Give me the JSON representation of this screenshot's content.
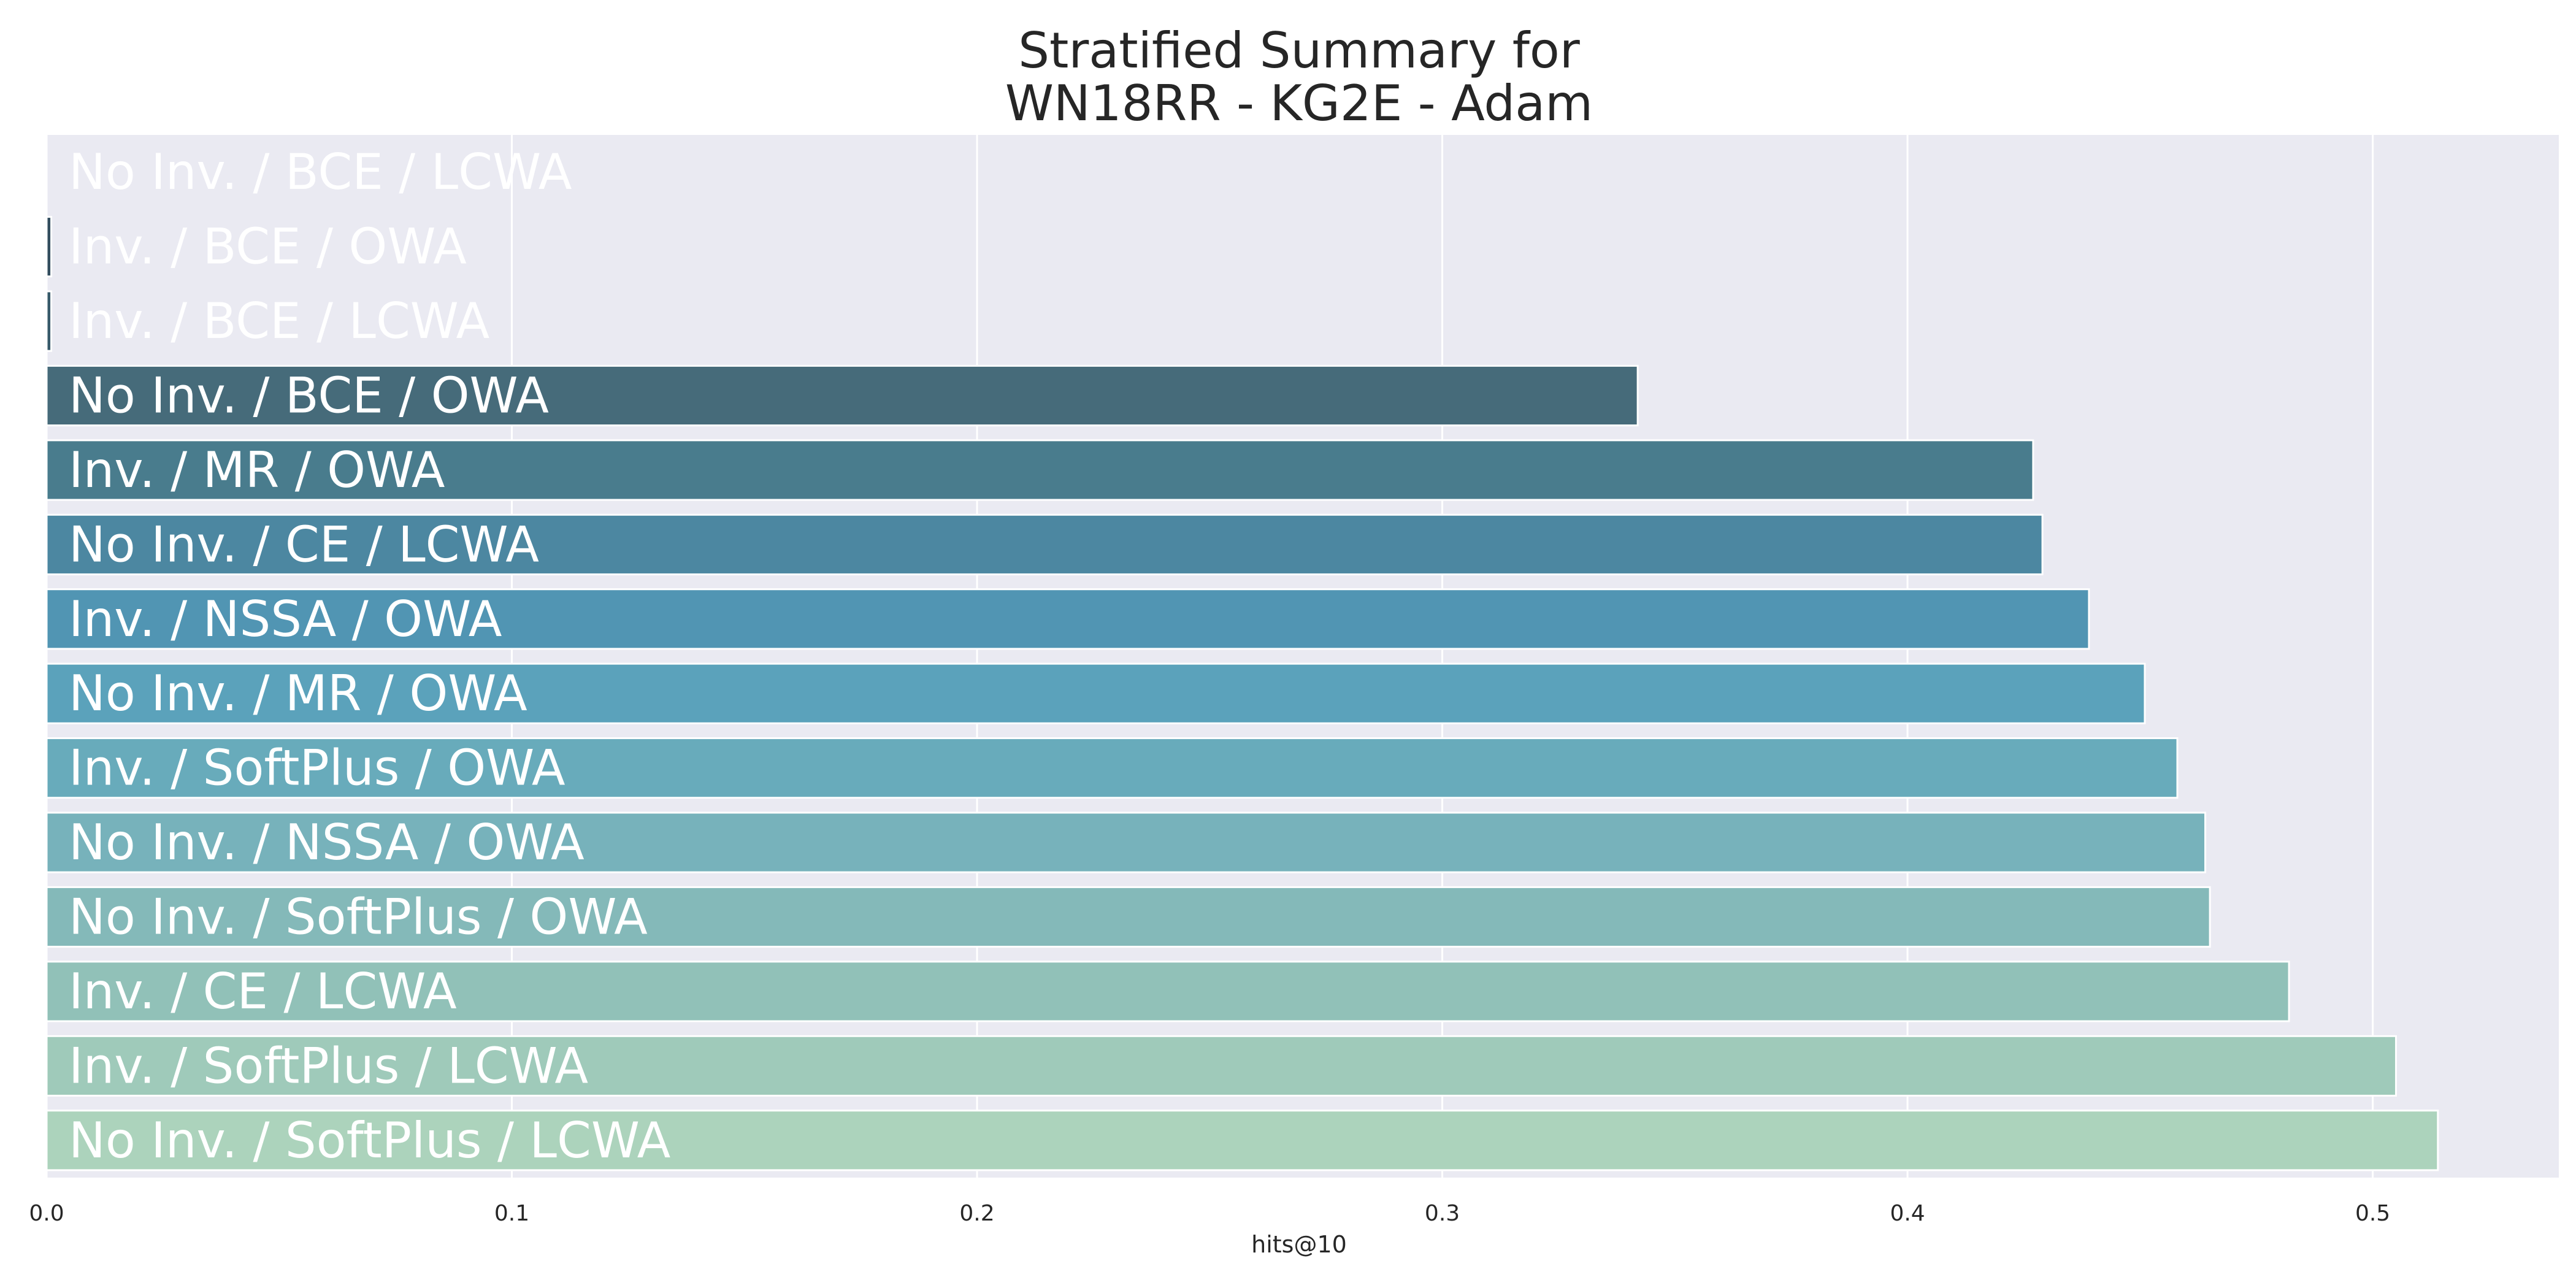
{
  "chart_data": {
    "type": "bar",
    "orientation": "horizontal",
    "title_lines": [
      "Stratified Summary for",
      "WN18RR - KG2E - Adam"
    ],
    "xlabel": "hits@10",
    "ylabel": "",
    "xlim": [
      0.0,
      0.54
    ],
    "xticks": [
      {
        "value": 0.0,
        "label": "0.0"
      },
      {
        "value": 0.1,
        "label": "0.1"
      },
      {
        "value": 0.2,
        "label": "0.2"
      },
      {
        "value": 0.3,
        "label": "0.3"
      },
      {
        "value": 0.4,
        "label": "0.4"
      },
      {
        "value": 0.5,
        "label": "0.5"
      }
    ],
    "grid": true,
    "background_color": "#eaeaf2",
    "grid_color": "#ffffff",
    "label_color": "#ffffff",
    "bars": [
      {
        "label": "No Inv. / BCE / LCWA",
        "value": 0.0,
        "color": "#2e4858"
      },
      {
        "label": "Inv. / BCE / OWA",
        "value": 0.001,
        "color": "#324d5e"
      },
      {
        "label": "Inv. / BCE / LCWA",
        "value": 0.001,
        "color": "#375a6a"
      },
      {
        "label": "No Inv. / BCE / OWA",
        "value": 0.342,
        "color": "#466b7a"
      },
      {
        "label": "Inv. / MR / OWA",
        "value": 0.427,
        "color": "#497c8d"
      },
      {
        "label": "No Inv. / CE / LCWA",
        "value": 0.429,
        "color": "#4c87a1"
      },
      {
        "label": "Inv. / NSSA / OWA",
        "value": 0.439,
        "color": "#5195b3"
      },
      {
        "label": "No Inv. / MR / OWA",
        "value": 0.451,
        "color": "#5ba2bb"
      },
      {
        "label": "Inv. / SoftPlus / OWA",
        "value": 0.458,
        "color": "#68abbb"
      },
      {
        "label": "No Inv. / NSSA / OWA",
        "value": 0.464,
        "color": "#77b2bb"
      },
      {
        "label": "No Inv. / SoftPlus / OWA",
        "value": 0.465,
        "color": "#84b9b9"
      },
      {
        "label": "Inv. / CE / LCWA",
        "value": 0.482,
        "color": "#91c1b8"
      },
      {
        "label": "Inv. / SoftPlus / LCWA",
        "value": 0.505,
        "color": "#9fcaba"
      },
      {
        "label": "No Inv. / SoftPlus / LCWA",
        "value": 0.514,
        "color": "#acd3bc"
      }
    ]
  }
}
